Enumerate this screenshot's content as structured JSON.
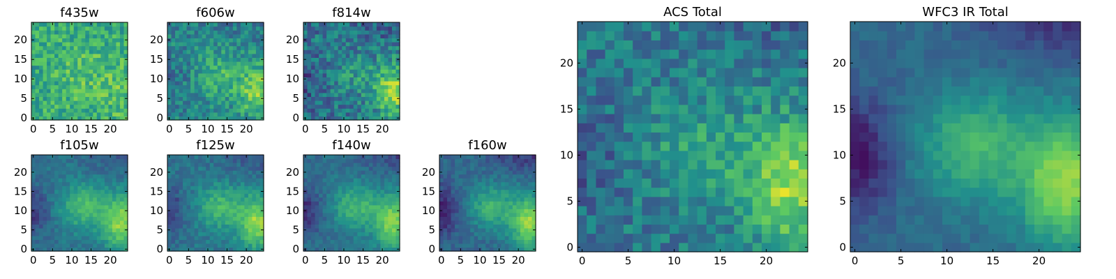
{
  "chart_data": {
    "type": "heatmap",
    "colormap": "viridis",
    "colormap_stops": [
      "#440154",
      "#3b528b",
      "#21918c",
      "#5ec962",
      "#fde725"
    ],
    "grid_size": 25,
    "origin": "lower",
    "panels": [
      {
        "id": "f435w",
        "title": "f435w",
        "x_ticks": [
          "0",
          "5",
          "10",
          "15",
          "20"
        ],
        "y_ticks": [
          "0",
          "5",
          "10",
          "15",
          "20"
        ],
        "xlim": [
          -0.5,
          24.5
        ],
        "ylim": [
          -0.5,
          24.5
        ],
        "noise": 0.32,
        "bright": 0.1,
        "blob": 0.1,
        "dark": 0.05,
        "base": 0.62
      },
      {
        "id": "f606w",
        "title": "f606w",
        "x_ticks": [
          "0",
          "5",
          "10",
          "15",
          "20"
        ],
        "y_ticks": [
          "0",
          "5",
          "10",
          "15",
          "20"
        ],
        "xlim": [
          -0.5,
          24.5
        ],
        "ylim": [
          -0.5,
          24.5
        ],
        "noise": 0.3,
        "bright": 0.35,
        "blob": 0.2,
        "dark": 0.1,
        "base": 0.45
      },
      {
        "id": "f814w",
        "title": "f814w",
        "x_ticks": [
          "0",
          "5",
          "10",
          "15",
          "20"
        ],
        "y_ticks": [
          "0",
          "5",
          "10",
          "15",
          "20"
        ],
        "xlim": [
          -0.5,
          24.5
        ],
        "ylim": [
          -0.5,
          24.5
        ],
        "noise": 0.34,
        "bright": 0.45,
        "blob": 0.15,
        "dark": 0.12,
        "base": 0.38
      },
      {
        "id": "f105w",
        "title": "f105w",
        "x_ticks": [
          "0",
          "5",
          "10",
          "15",
          "20"
        ],
        "y_ticks": [
          "0",
          "5",
          "10",
          "15",
          "20"
        ],
        "xlim": [
          -0.5,
          24.5
        ],
        "ylim": [
          -0.5,
          24.5
        ],
        "noise": 0.14,
        "bright": 0.45,
        "blob": 0.3,
        "dark": 0.2,
        "base": 0.38
      },
      {
        "id": "f125w",
        "title": "f125w",
        "x_ticks": [
          "0",
          "5",
          "10",
          "15",
          "20"
        ],
        "y_ticks": [
          "0",
          "5",
          "10",
          "15",
          "20"
        ],
        "xlim": [
          -0.5,
          24.5
        ],
        "ylim": [
          -0.5,
          24.5
        ],
        "noise": 0.16,
        "bright": 0.45,
        "blob": 0.28,
        "dark": 0.2,
        "base": 0.38
      },
      {
        "id": "f140w",
        "title": "f140w",
        "x_ticks": [
          "0",
          "5",
          "10",
          "15",
          "20"
        ],
        "y_ticks": [
          "0",
          "5",
          "10",
          "15",
          "20"
        ],
        "xlim": [
          -0.5,
          24.5
        ],
        "ylim": [
          -0.5,
          24.5
        ],
        "noise": 0.14,
        "bright": 0.45,
        "blob": 0.3,
        "dark": 0.22,
        "base": 0.36
      },
      {
        "id": "f160w",
        "title": "f160w",
        "x_ticks": [
          "0",
          "5",
          "10",
          "15",
          "20"
        ],
        "y_ticks": [
          "0",
          "5",
          "10",
          "15",
          "20"
        ],
        "xlim": [
          -0.5,
          24.5
        ],
        "ylim": [
          -0.5,
          24.5
        ],
        "noise": 0.14,
        "bright": 0.5,
        "blob": 0.3,
        "dark": 0.25,
        "base": 0.33
      },
      {
        "id": "acs-total",
        "title": "ACS Total",
        "x_ticks": [
          "0",
          "5",
          "10",
          "15",
          "20"
        ],
        "y_ticks": [
          "0",
          "5",
          "10",
          "15",
          "20"
        ],
        "xlim": [
          -0.5,
          24.5
        ],
        "ylim": [
          -0.5,
          24.5
        ],
        "noise": 0.28,
        "bright": 0.45,
        "blob": 0.18,
        "dark": 0.12,
        "base": 0.4
      },
      {
        "id": "wfc3-ir-total",
        "title": "WFC3 IR Total",
        "x_ticks": [
          "0",
          "5",
          "10",
          "15",
          "20"
        ],
        "y_ticks": [
          "0",
          "5",
          "10",
          "15",
          "20"
        ],
        "xlim": [
          -0.5,
          24.5
        ],
        "ylim": [
          -0.5,
          24.5
        ],
        "noise": 0.1,
        "bright": 0.5,
        "blob": 0.32,
        "dark": 0.28,
        "base": 0.34
      }
    ]
  }
}
